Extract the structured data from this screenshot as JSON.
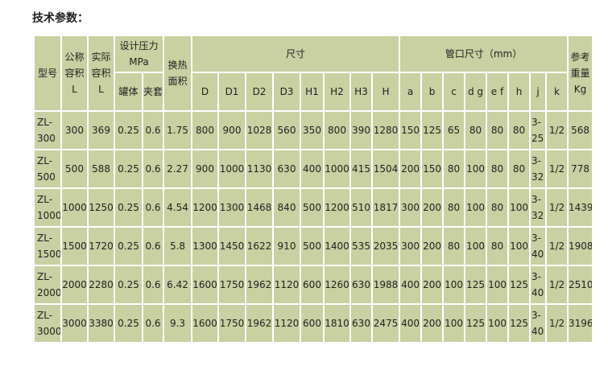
{
  "title": "技术参数：",
  "headers": {
    "model": "型号",
    "nominal": "公称容积",
    "nominal_unit": "L",
    "actual": "实际容积",
    "actual_unit": "L",
    "pressure": "设计压力MPa",
    "tank": "罐体",
    "jacket": "夹套",
    "heat_area": "换热面积",
    "dimensions": "尺寸",
    "nozzles": "管口尺寸（mm）",
    "weight": "参考重量",
    "weight_unit": "Kg",
    "dim_cols": [
      "D",
      "D1",
      "D2",
      "D3",
      "H1",
      "H2",
      "H3",
      "H"
    ],
    "nozzle_cols": [
      "a",
      "b",
      "c",
      "d g",
      "e f",
      "h",
      "j",
      "k"
    ]
  },
  "rows": [
    [
      "ZL-300",
      "300",
      "369",
      "0.25",
      "0.6",
      "1.75",
      "800",
      "900",
      "1028",
      "560",
      "350",
      "800",
      "390",
      "1280",
      "150",
      "125",
      "65",
      "80",
      "80",
      "80",
      "3-25",
      "1/2",
      "568"
    ],
    [
      "ZL-500",
      "500",
      "588",
      "0.25",
      "0.6",
      "2.27",
      "900",
      "1000",
      "1130",
      "630",
      "400",
      "1000",
      "415",
      "1504",
      "200",
      "150",
      "80",
      "100",
      "80",
      "80",
      "3-32",
      "1/2",
      "778"
    ],
    [
      "ZL-1000",
      "1000",
      "1250",
      "0.25",
      "0.6",
      "4.54",
      "1200",
      "1300",
      "1468",
      "840",
      "500",
      "1200",
      "510",
      "1817",
      "300",
      "200",
      "80",
      "100",
      "80",
      "100",
      "3-32",
      "1/2",
      "1439"
    ],
    [
      "ZL-1500",
      "1500",
      "1720",
      "0.25",
      "0.6",
      "5.8",
      "1300",
      "1450",
      "1622",
      "910",
      "500",
      "1400",
      "535",
      "2035",
      "300",
      "200",
      "80",
      "100",
      "80",
      "100",
      "3-40",
      "1/2",
      "1908"
    ],
    [
      "ZL-2000",
      "2000",
      "2280",
      "0.25",
      "0.6",
      "6.42",
      "1600",
      "1750",
      "1962",
      "1120",
      "600",
      "1260",
      "630",
      "1988",
      "400",
      "200",
      "100",
      "125",
      "100",
      "125",
      "3-40",
      "1/2",
      "2510"
    ],
    [
      "ZL-3000",
      "3000",
      "3380",
      "0.25",
      "0.6",
      "9.3",
      "1600",
      "1750",
      "1962",
      "1120",
      "600",
      "1810",
      "630",
      "2475",
      "400",
      "200",
      "100",
      "125",
      "100",
      "125",
      "3-40",
      "1/2",
      "3196"
    ]
  ],
  "colors": {
    "cell_bg": "#c9d0a1",
    "border": "#ffffff"
  }
}
